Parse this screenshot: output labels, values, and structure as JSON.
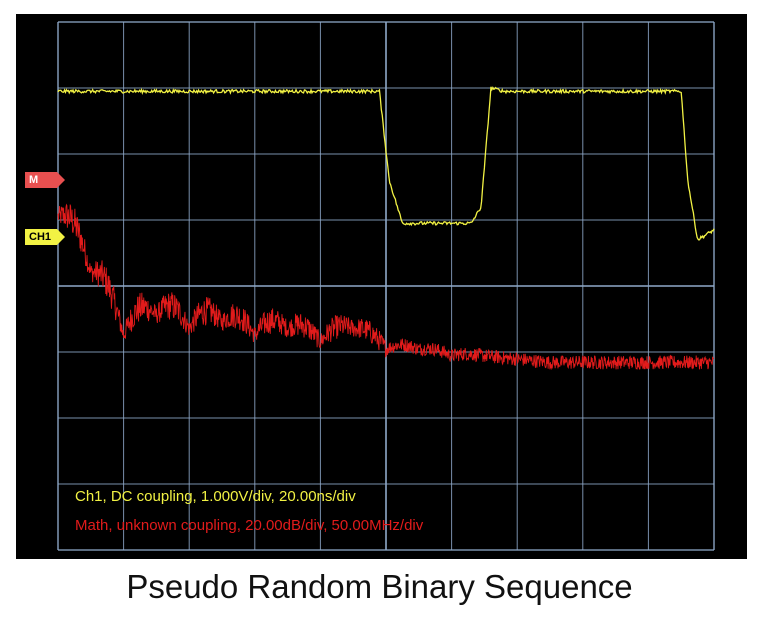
{
  "caption": "Pseudo Random Binary Sequence",
  "markers": {
    "math": "M",
    "ch1": "CH1"
  },
  "legend": {
    "ch1": "Ch1, DC coupling, 1.000V/div, 20.00ns/div",
    "math": "Math, unknown coupling, 20.00dB/div, 50.00MHz/div"
  },
  "colors": {
    "background": "#000000",
    "grid": "#8fa9c9",
    "ch1": "#f2f244",
    "math": "#e21b1b",
    "math_marker": "#e85050",
    "ch1_marker": "#f2f244"
  },
  "chart_data": {
    "type": "line",
    "grid": {
      "divisions_x": 10,
      "divisions_y": 8,
      "visible": true
    },
    "series": [
      {
        "name": "Ch1",
        "units": "div",
        "x": [
          0,
          4.9,
          5.05,
          5.25,
          6.3,
          6.45,
          6.6,
          6.8,
          9.5,
          9.6,
          9.75,
          10
        ],
        "y": [
          2.95,
          2.95,
          1.6,
          0.95,
          0.95,
          1.2,
          3.0,
          2.95,
          2.95,
          1.6,
          0.7,
          0.85
        ]
      },
      {
        "name": "Math",
        "units": "div",
        "x": [
          0,
          0.3,
          0.7,
          1.0,
          1.5,
          2.0,
          2.5,
          3.0,
          3.5,
          4.0,
          4.5,
          5.0,
          5.5,
          6.0,
          6.5,
          7.0,
          7.5,
          8.0,
          8.5,
          9.0,
          9.5,
          10
        ],
        "y": [
          1.2,
          0.7,
          0.0,
          -0.6,
          -0.3,
          -0.5,
          -0.4,
          -0.6,
          -0.5,
          -0.7,
          -0.5,
          -0.8,
          -0.8,
          -0.9,
          -0.9,
          -0.95,
          -1.0,
          -1.0,
          -1.0,
          -1.0,
          -1.0,
          -1.0
        ]
      }
    ]
  }
}
